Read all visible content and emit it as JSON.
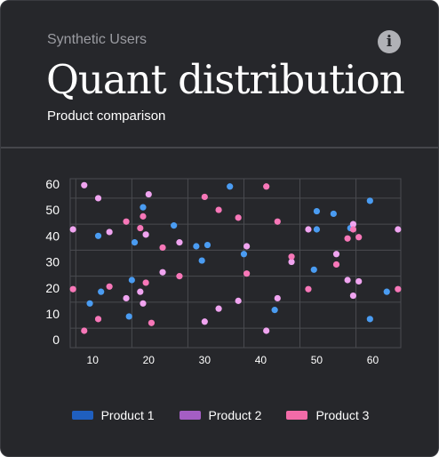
{
  "card": {
    "supertitle": "Synthetic Users",
    "title": "Quant distribution",
    "subtitle": "Product comparison",
    "info_icon": "info-icon"
  },
  "colors": {
    "background": "#26272b",
    "grid": "#4a4b50",
    "axis_text": "#ffffff",
    "product1": "#4a9cf2",
    "product2": "#f0a4f0",
    "product3": "#f777b8"
  },
  "chart_data": {
    "type": "scatter",
    "title": "Quant distribution",
    "subtitle": "Product comparison",
    "xlabel": "",
    "ylabel": "",
    "xlim": [
      6,
      65
    ],
    "ylim": [
      -3,
      62
    ],
    "xticks": [
      10,
      20,
      30,
      40,
      50,
      60
    ],
    "yticks": [
      0,
      10,
      20,
      30,
      40,
      50,
      60
    ],
    "grid": true,
    "legend_position": "bottom",
    "series": [
      {
        "name": "Product 1",
        "color": "#4a9cf2",
        "points": [
          [
            9.5,
            14
          ],
          [
            11,
            40
          ],
          [
            11.5,
            18.5
          ],
          [
            16.5,
            9
          ],
          [
            17,
            23
          ],
          [
            17.5,
            37.5
          ],
          [
            19,
            51
          ],
          [
            24.5,
            44
          ],
          [
            28.5,
            36
          ],
          [
            29.5,
            30.5
          ],
          [
            30.5,
            36.5
          ],
          [
            34.5,
            59
          ],
          [
            37,
            33
          ],
          [
            42.5,
            11.5
          ],
          [
            49.5,
            27
          ],
          [
            50,
            49.5
          ],
          [
            50,
            42.5
          ],
          [
            53,
            48.5
          ],
          [
            56,
            43
          ],
          [
            59.5,
            8
          ],
          [
            59.5,
            53.5
          ],
          [
            62.5,
            18.5
          ]
        ]
      },
      {
        "name": "Product 2",
        "color": "#f0a4f0",
        "points": [
          [
            6.5,
            42.5
          ],
          [
            8.5,
            59.5
          ],
          [
            11,
            54.5
          ],
          [
            13,
            41.5
          ],
          [
            16,
            16
          ],
          [
            18.5,
            18.5
          ],
          [
            19,
            14
          ],
          [
            19.5,
            40.5
          ],
          [
            20,
            56
          ],
          [
            22.5,
            26
          ],
          [
            25.5,
            37.5
          ],
          [
            30,
            7
          ],
          [
            32.5,
            12
          ],
          [
            36,
            15
          ],
          [
            37.5,
            36
          ],
          [
            41,
            3.5
          ],
          [
            43,
            16
          ],
          [
            45.5,
            30
          ],
          [
            48.5,
            42.5
          ],
          [
            53.5,
            33
          ],
          [
            55.5,
            23
          ],
          [
            56.5,
            17
          ],
          [
            56.5,
            44.5
          ],
          [
            57.5,
            22.5
          ],
          [
            64.5,
            42.5
          ]
        ]
      },
      {
        "name": "Product 3",
        "color": "#f777b8",
        "points": [
          [
            6.5,
            19.5
          ],
          [
            8.5,
            3.5
          ],
          [
            11,
            8
          ],
          [
            13,
            20.5
          ],
          [
            16,
            45.5
          ],
          [
            18.5,
            43
          ],
          [
            19,
            47.5
          ],
          [
            19.5,
            22
          ],
          [
            20.5,
            6.5
          ],
          [
            22.5,
            35.5
          ],
          [
            25.5,
            24.5
          ],
          [
            30,
            55
          ],
          [
            32.5,
            50
          ],
          [
            36,
            47
          ],
          [
            37.5,
            25.5
          ],
          [
            41,
            59
          ],
          [
            43,
            45.5
          ],
          [
            45.5,
            32
          ],
          [
            48.5,
            19.5
          ],
          [
            53.5,
            29
          ],
          [
            55.5,
            39
          ],
          [
            56.5,
            42.5
          ],
          [
            57.5,
            39.5
          ],
          [
            64.5,
            19.5
          ]
        ]
      }
    ]
  },
  "legend": {
    "items": [
      {
        "label": "Product 1",
        "color": "#1f5fbf"
      },
      {
        "label": "Product 2",
        "color": "#a45ec4"
      },
      {
        "label": "Product 3",
        "color": "#f26ba8"
      }
    ]
  }
}
